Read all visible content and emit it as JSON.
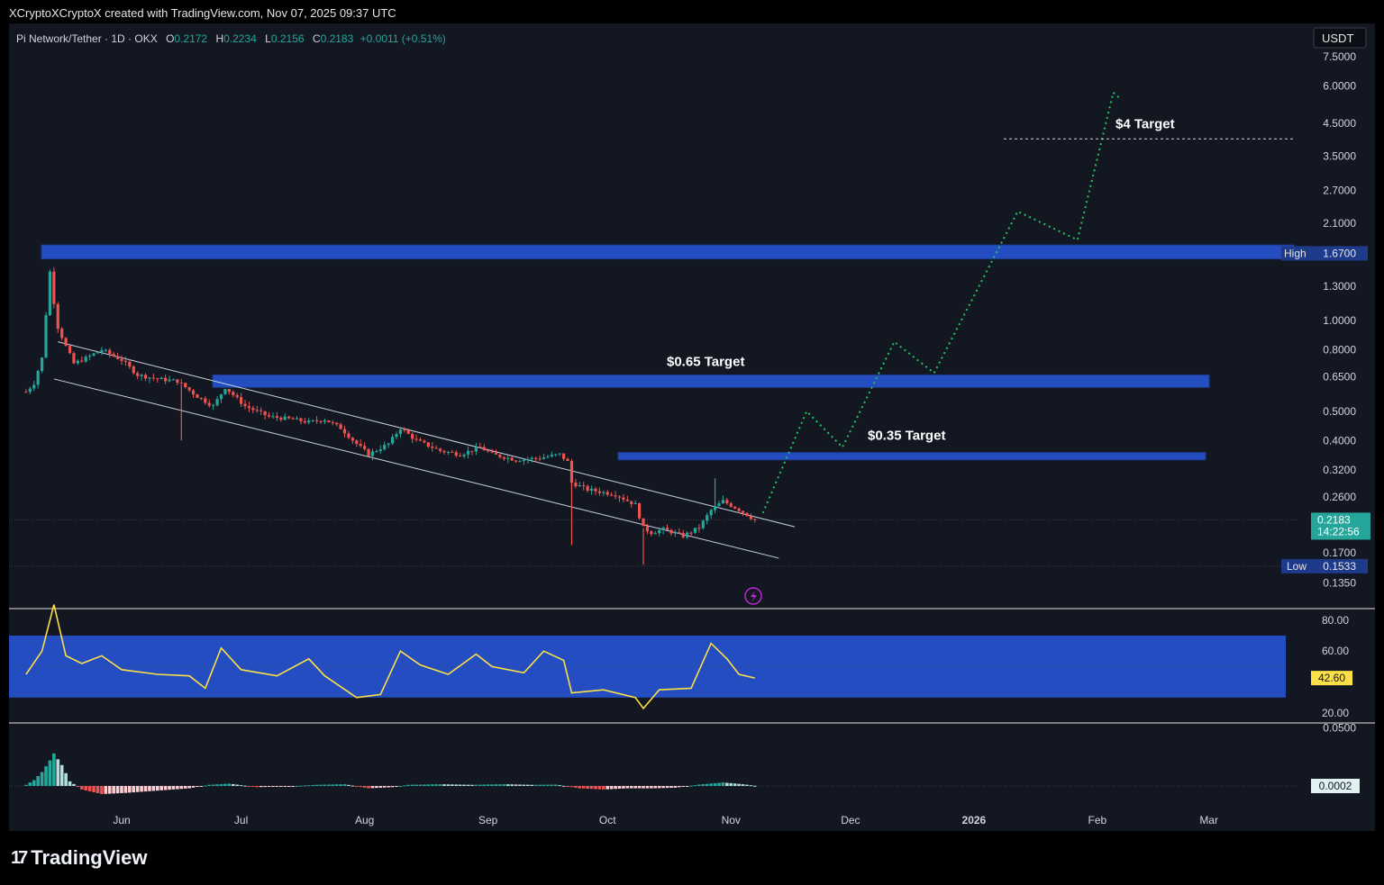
{
  "header": {
    "credit": "XCryptoXCryptoX created with TradingView.com, Nov 07, 2025 09:37 UTC"
  },
  "legend": {
    "symbol": "Pi Network/Tether · 1D · OKX",
    "o_label": "O",
    "o": "0.2172",
    "h_label": "H",
    "h": "0.2234",
    "l_label": "L",
    "l": "0.2156",
    "c_label": "C",
    "c": "0.2183",
    "change": "+0.0011 (+0.51%)"
  },
  "brand": {
    "logo": "17",
    "name": "TradingView"
  },
  "colors": {
    "background": "#131722",
    "up": "#26a69a",
    "down": "#ef5350",
    "zone": "#2962ff",
    "projection": "#22c55e",
    "rsi": "#fde047"
  },
  "chart_data": {
    "type": "candlestick",
    "currency": "USDT",
    "y_scale": "log",
    "price_ticks": [
      "7.5000",
      "6.0000",
      "4.5000",
      "3.5000",
      "2.7000",
      "2.1000",
      "1.3000",
      "1.0000",
      "0.8000",
      "0.6500",
      "0.5000",
      "0.4000",
      "0.3200",
      "0.2600",
      "0.1700",
      "0.1350"
    ],
    "x_ticks": [
      "Jun",
      "Jul",
      "Aug",
      "Sep",
      "Oct",
      "Nov",
      "Dec",
      "2026",
      "Feb",
      "Mar"
    ],
    "current_price": {
      "value": "0.2183",
      "countdown": "14:22:56"
    },
    "high_marker": {
      "label": "High",
      "value": "1.6700"
    },
    "low_marker": {
      "label": "Low",
      "value": "0.1533"
    },
    "zones": [
      {
        "from": 1.6,
        "to": 1.78
      },
      {
        "from": 0.6,
        "to": 0.66
      },
      {
        "from": 0.345,
        "to": 0.365
      }
    ],
    "annotations": [
      {
        "text": "$4 Target",
        "price": 4.0
      },
      {
        "text": "$0.65 Target",
        "price": 0.65
      },
      {
        "text": "$0.35 Target",
        "price": 0.35
      }
    ],
    "close_path": [
      [
        "2025-05-08",
        0.58
      ],
      [
        "2025-05-10",
        0.62
      ],
      [
        "2025-05-12",
        0.75
      ],
      [
        "2025-05-13",
        1.05
      ],
      [
        "2025-05-14",
        1.45
      ],
      [
        "2025-05-15",
        1.15
      ],
      [
        "2025-05-16",
        0.95
      ],
      [
        "2025-05-18",
        0.82
      ],
      [
        "2025-05-20",
        0.72
      ],
      [
        "2025-05-23",
        0.75
      ],
      [
        "2025-05-27",
        0.8
      ],
      [
        "2025-06-01",
        0.74
      ],
      [
        "2025-06-05",
        0.66
      ],
      [
        "2025-06-10",
        0.64
      ],
      [
        "2025-06-15",
        0.63
      ],
      [
        "2025-06-20",
        0.56
      ],
      [
        "2025-06-24",
        0.52
      ],
      [
        "2025-06-27",
        0.6
      ],
      [
        "2025-07-02",
        0.52
      ],
      [
        "2025-07-08",
        0.48
      ],
      [
        "2025-07-14",
        0.47
      ],
      [
        "2025-07-18",
        0.46
      ],
      [
        "2025-07-22",
        0.47
      ],
      [
        "2025-07-26",
        0.44
      ],
      [
        "2025-07-30",
        0.39
      ],
      [
        "2025-08-02",
        0.36
      ],
      [
        "2025-08-07",
        0.39
      ],
      [
        "2025-08-10",
        0.44
      ],
      [
        "2025-08-14",
        0.4
      ],
      [
        "2025-08-20",
        0.37
      ],
      [
        "2025-08-25",
        0.36
      ],
      [
        "2025-08-30",
        0.38
      ],
      [
        "2025-09-02",
        0.36
      ],
      [
        "2025-09-08",
        0.345
      ],
      [
        "2025-09-14",
        0.35
      ],
      [
        "2025-09-19",
        0.36
      ],
      [
        "2025-09-21",
        0.34
      ],
      [
        "2025-09-22",
        0.29
      ],
      [
        "2025-09-26",
        0.275
      ],
      [
        "2025-10-03",
        0.265
      ],
      [
        "2025-10-08",
        0.245
      ],
      [
        "2025-10-10",
        0.205
      ],
      [
        "2025-10-12",
        0.198
      ],
      [
        "2025-10-15",
        0.203
      ],
      [
        "2025-10-20",
        0.193
      ],
      [
        "2025-10-24",
        0.206
      ],
      [
        "2025-10-27",
        0.235
      ],
      [
        "2025-10-30",
        0.252
      ],
      [
        "2025-11-03",
        0.236
      ],
      [
        "2025-11-07",
        0.2183
      ]
    ],
    "wick_spikes": [
      {
        "date": "2025-06-16",
        "low": 0.4
      },
      {
        "date": "2025-09-22",
        "low": 0.18
      },
      {
        "date": "2025-10-10",
        "low": 0.155
      },
      {
        "date": "2025-10-28",
        "high": 0.3
      }
    ],
    "channel": {
      "upper": [
        [
          "2025-05-16",
          0.85
        ],
        [
          "2025-11-17",
          0.207
        ]
      ],
      "lower": [
        [
          "2025-05-15",
          0.64
        ],
        [
          "2025-11-13",
          0.163
        ]
      ]
    },
    "projection": [
      [
        "2025-11-09",
        0.23
      ],
      [
        "2025-11-20",
        0.5
      ],
      [
        "2025-11-29",
        0.38
      ],
      [
        "2025-12-12",
        0.85
      ],
      [
        "2025-12-22",
        0.67
      ],
      [
        "2026-01-12",
        2.3
      ],
      [
        "2026-01-27",
        1.85
      ],
      [
        "2026-02-05",
        5.7
      ],
      [
        "2026-02-07",
        5.4
      ]
    ],
    "rsi": {
      "current": "42.60",
      "ticks": [
        "80.00",
        "60.00",
        "20.00"
      ],
      "band": [
        30,
        70
      ],
      "series": [
        [
          "2025-05-08",
          45
        ],
        [
          "2025-05-12",
          60
        ],
        [
          "2025-05-15",
          90
        ],
        [
          "2025-05-18",
          57
        ],
        [
          "2025-05-22",
          52
        ],
        [
          "2025-05-27",
          57
        ],
        [
          "2025-06-01",
          48
        ],
        [
          "2025-06-10",
          45
        ],
        [
          "2025-06-18",
          44
        ],
        [
          "2025-06-22",
          36
        ],
        [
          "2025-06-26",
          62
        ],
        [
          "2025-07-01",
          48
        ],
        [
          "2025-07-10",
          44
        ],
        [
          "2025-07-18",
          55
        ],
        [
          "2025-07-22",
          44
        ],
        [
          "2025-07-30",
          30
        ],
        [
          "2025-08-05",
          32
        ],
        [
          "2025-08-10",
          60
        ],
        [
          "2025-08-15",
          51
        ],
        [
          "2025-08-22",
          45
        ],
        [
          "2025-08-29",
          58
        ],
        [
          "2025-09-02",
          50
        ],
        [
          "2025-09-10",
          46
        ],
        [
          "2025-09-15",
          60
        ],
        [
          "2025-09-20",
          54
        ],
        [
          "2025-09-22",
          33
        ],
        [
          "2025-09-30",
          35
        ],
        [
          "2025-10-08",
          30
        ],
        [
          "2025-10-10",
          23
        ],
        [
          "2025-10-14",
          35
        ],
        [
          "2025-10-22",
          36
        ],
        [
          "2025-10-27",
          65
        ],
        [
          "2025-10-31",
          55
        ],
        [
          "2025-11-03",
          45
        ],
        [
          "2025-11-07",
          42.6
        ]
      ]
    },
    "macd": {
      "current": "0.0002",
      "ticks": [
        "0.0500"
      ],
      "series": [
        [
          "2025-05-08",
          0.001
        ],
        [
          "2025-05-10",
          0.005
        ],
        [
          "2025-05-12",
          0.012
        ],
        [
          "2025-05-14",
          0.022
        ],
        [
          "2025-05-15",
          0.028
        ],
        [
          "2025-05-17",
          0.018
        ],
        [
          "2025-05-19",
          0.004
        ],
        [
          "2025-05-22",
          -0.003
        ],
        [
          "2025-05-27",
          -0.007
        ],
        [
          "2025-06-02",
          -0.006
        ],
        [
          "2025-06-10",
          -0.004
        ],
        [
          "2025-06-18",
          -0.002
        ],
        [
          "2025-06-23",
          0.001
        ],
        [
          "2025-06-28",
          0.002
        ],
        [
          "2025-07-05",
          -0.001
        ],
        [
          "2025-07-12",
          -0.0005
        ],
        [
          "2025-07-20",
          0.001
        ],
        [
          "2025-07-27",
          0.0015
        ],
        [
          "2025-08-02",
          -0.002
        ],
        [
          "2025-08-08",
          -0.001
        ],
        [
          "2025-08-12",
          0.001
        ],
        [
          "2025-08-20",
          0.0015
        ],
        [
          "2025-08-28",
          0.001
        ],
        [
          "2025-09-05",
          0.0015
        ],
        [
          "2025-09-12",
          0.001
        ],
        [
          "2025-09-18",
          0.0012
        ],
        [
          "2025-09-24",
          -0.002
        ],
        [
          "2025-09-30",
          -0.003
        ],
        [
          "2025-10-06",
          -0.002
        ],
        [
          "2025-10-12",
          -0.002
        ],
        [
          "2025-10-18",
          -0.0015
        ],
        [
          "2025-10-24",
          0.0012
        ],
        [
          "2025-10-30",
          0.003
        ],
        [
          "2025-11-04",
          0.0015
        ],
        [
          "2025-11-07",
          0.0002
        ]
      ]
    }
  }
}
